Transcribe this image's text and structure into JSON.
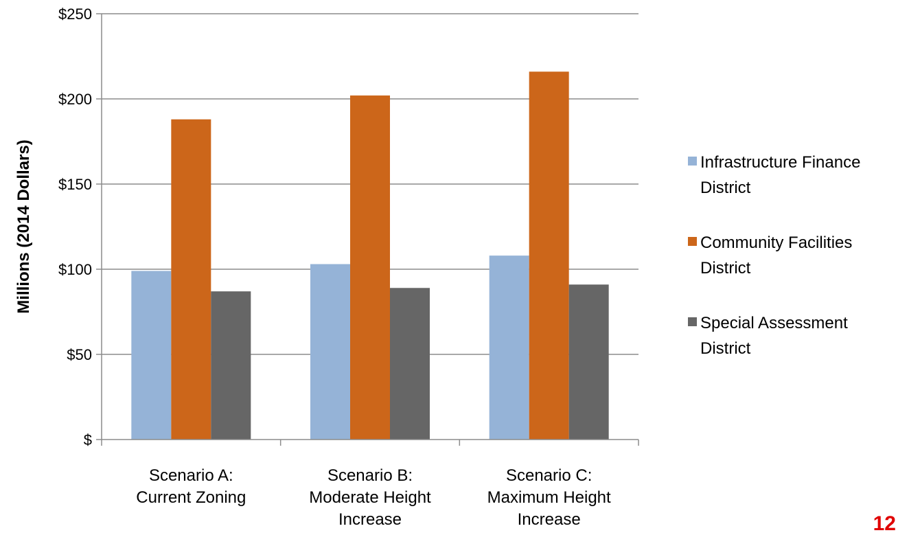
{
  "chart_data": {
    "type": "bar",
    "title": "",
    "xlabel": "",
    "ylabel": "Millions (2014 Dollars)",
    "ylim": [
      0,
      250
    ],
    "yticks": [
      0,
      50,
      100,
      150,
      200,
      250
    ],
    "ytick_labels": [
      "$",
      "$50",
      "$100",
      "$150",
      "$200",
      "$250"
    ],
    "grid": true,
    "legend_position": "right",
    "categories": [
      [
        "Scenario A:",
        "Current Zoning"
      ],
      [
        "Scenario B:",
        "Moderate Height",
        "Increase"
      ],
      [
        "Scenario C:",
        "Maximum Height",
        "Increase"
      ]
    ],
    "series": [
      {
        "name": "Infrastructure Finance District",
        "legend_lines": [
          "Infrastructure Finance",
          "District"
        ],
        "color": "#95b3d7",
        "values": [
          99,
          103,
          108
        ]
      },
      {
        "name": "Community Facilities District",
        "legend_lines": [
          "Community Facilities",
          "District"
        ],
        "color": "#cc661a",
        "values": [
          188,
          202,
          216
        ]
      },
      {
        "name": "Special Assessment District",
        "legend_lines": [
          "Special Assessment",
          "District"
        ],
        "color": "#666666",
        "values": [
          87,
          89,
          91
        ]
      }
    ]
  },
  "page_number": "12"
}
